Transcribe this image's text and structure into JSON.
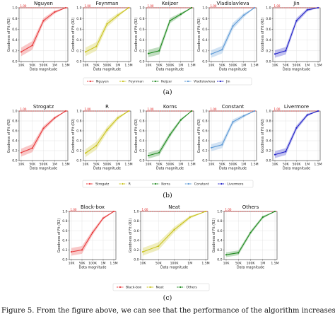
{
  "colors": {
    "red": "#e8393b",
    "yellow": "#c9c21a",
    "green": "#1f8a1f",
    "lightblue": "#5d9ad6",
    "blue": "#2020c8",
    "reference": "#e02020"
  },
  "reference_label": "1.00",
  "caption_fragment": "Figure 5. From the figure above, we can see that the performance of the algorithm increases with",
  "chart_data": [
    {
      "type": "line",
      "title": "Nguyen",
      "color_key": "red",
      "x": [
        "10K",
        "50K",
        "500K",
        "1M",
        "1.5M"
      ],
      "values": [
        0.18,
        0.3,
        0.76,
        0.92,
        1.0
      ],
      "band": [
        0.08,
        0.08,
        0.05,
        0.03,
        0.0
      ],
      "xlabel": "Data magnitude",
      "ylabel": "Goodness of Fit (R2)",
      "ylim": [
        0.0,
        1.0
      ],
      "grid": true
    },
    {
      "type": "line",
      "title": "Feynman",
      "color_key": "yellow",
      "x": [
        "10K",
        "50K",
        "500K",
        "1M",
        "1.5M"
      ],
      "values": [
        0.18,
        0.28,
        0.7,
        0.86,
        1.0
      ],
      "band": [
        0.08,
        0.08,
        0.06,
        0.04,
        0.0
      ],
      "xlabel": "Data magnitude",
      "ylabel": "Goodness of Fit (R2)",
      "ylim": [
        0.0,
        1.0
      ],
      "grid": true
    },
    {
      "type": "line",
      "title": "Keijzer",
      "color_key": "green",
      "x": [
        "10K",
        "50K",
        "500K",
        "1M",
        "1.5M"
      ],
      "values": [
        0.15,
        0.2,
        0.76,
        0.88,
        1.0
      ],
      "band": [
        0.07,
        0.07,
        0.05,
        0.03,
        0.0
      ],
      "xlabel": "Data magnitude",
      "ylabel": "Goodness of Fit (R2)",
      "ylim": [
        0.0,
        1.0
      ],
      "grid": true
    },
    {
      "type": "line",
      "title": "Vladislavleva",
      "color_key": "lightblue",
      "x": [
        "10K",
        "50K",
        "500K",
        "1M",
        "1.5M"
      ],
      "values": [
        0.14,
        0.22,
        0.66,
        0.86,
        1.0
      ],
      "band": [
        0.07,
        0.07,
        0.06,
        0.04,
        0.0
      ],
      "xlabel": "Data magnitude",
      "ylabel": "Goodness of Fit (R2)",
      "ylim": [
        0.0,
        1.0
      ],
      "grid": true
    },
    {
      "type": "line",
      "title": "Jin",
      "color_key": "blue",
      "x": [
        "10K",
        "50K",
        "500K",
        "1M",
        "1.5M"
      ],
      "values": [
        0.14,
        0.2,
        0.76,
        0.96,
        1.0
      ],
      "band": [
        0.07,
        0.07,
        0.05,
        0.03,
        0.0
      ],
      "xlabel": "Data magnitude",
      "ylabel": "Goodness of Fit (R2)",
      "ylim": [
        0.0,
        1.0
      ],
      "grid": true
    },
    {
      "type": "line",
      "title": "Strogatz",
      "color_key": "red",
      "x": [
        "10K",
        "50K",
        "500K",
        "1M",
        "1.5M"
      ],
      "values": [
        0.16,
        0.25,
        0.65,
        0.86,
        1.0
      ],
      "band": [
        0.08,
        0.08,
        0.05,
        0.03,
        0.0
      ],
      "xlabel": "Data magnitude",
      "ylabel": "Goodness of Fit (R2)",
      "ylim": [
        0.0,
        1.0
      ],
      "grid": true
    },
    {
      "type": "line",
      "title": "R",
      "color_key": "yellow",
      "x": [
        "10K",
        "50K",
        "500K",
        "1M",
        "1.5M"
      ],
      "values": [
        0.15,
        0.3,
        0.62,
        0.86,
        1.0
      ],
      "band": [
        0.08,
        0.08,
        0.06,
        0.04,
        0.0
      ],
      "xlabel": "Data magnitude",
      "ylabel": "Goodness of Fit (R2)",
      "ylim": [
        0.0,
        1.0
      ],
      "grid": true
    },
    {
      "type": "line",
      "title": "Korns",
      "color_key": "green",
      "x": [
        "10K",
        "50K",
        "500K",
        "1M",
        "1.5M"
      ],
      "values": [
        0.1,
        0.16,
        0.52,
        0.82,
        1.0
      ],
      "band": [
        0.06,
        0.06,
        0.05,
        0.03,
        0.0
      ],
      "xlabel": "Data magnitude",
      "ylabel": "Goodness of Fit (R2)",
      "ylim": [
        0.0,
        1.0
      ],
      "grid": true
    },
    {
      "type": "line",
      "title": "Constant",
      "color_key": "lightblue",
      "x": [
        "10K",
        "50K",
        "500K",
        "1M",
        "1.5M"
      ],
      "values": [
        0.26,
        0.32,
        0.78,
        0.9,
        1.0
      ],
      "band": [
        0.07,
        0.07,
        0.05,
        0.03,
        0.0
      ],
      "xlabel": "Data magnitude",
      "ylabel": "Goodness of Fit (R2)",
      "ylim": [
        0.0,
        1.0
      ],
      "grid": true
    },
    {
      "type": "line",
      "title": "Livermore",
      "color_key": "blue",
      "x": [
        "10K",
        "50K",
        "500K",
        "1M",
        "1.5M"
      ],
      "values": [
        0.12,
        0.18,
        0.66,
        0.92,
        1.0
      ],
      "band": [
        0.07,
        0.07,
        0.05,
        0.03,
        0.0
      ],
      "xlabel": "Data magnitude",
      "ylabel": "Goodness of Fit (R2)",
      "ylim": [
        0.0,
        1.0
      ],
      "grid": true
    },
    {
      "type": "line",
      "title": "Black-box",
      "color_key": "red",
      "x": [
        "10K",
        "50K",
        "100K",
        "1M",
        "1.5M"
      ],
      "values": [
        0.16,
        0.2,
        0.56,
        0.86,
        1.0
      ],
      "band": [
        0.08,
        0.08,
        0.05,
        0.03,
        0.0
      ],
      "xlabel": "Data magnitude",
      "ylabel": "Goodness of Fit (R2)",
      "ylim": [
        0.0,
        1.0
      ],
      "grid": true
    },
    {
      "type": "line",
      "title": "Neat",
      "color_key": "yellow",
      "x": [
        "10K",
        "50K",
        "100K",
        "1M",
        "1.5M"
      ],
      "values": [
        0.16,
        0.28,
        0.62,
        0.88,
        1.0
      ],
      "band": [
        0.08,
        0.08,
        0.06,
        0.03,
        0.0
      ],
      "xlabel": "Data magnitude",
      "ylabel": "Goodness of Fit (R2)",
      "ylim": [
        0.0,
        1.0
      ],
      "grid": true
    },
    {
      "type": "line",
      "title": "Others",
      "color_key": "green",
      "x": [
        "10K",
        "50K",
        "100K",
        "1M",
        "1.5M"
      ],
      "values": [
        0.1,
        0.14,
        0.56,
        0.88,
        1.0
      ],
      "band": [
        0.05,
        0.05,
        0.04,
        0.03,
        0.0
      ],
      "xlabel": "Data magnitude",
      "ylabel": "Goodness of Fit (R2)",
      "ylim": [
        0.0,
        1.0
      ],
      "grid": true
    }
  ],
  "legends": [
    {
      "panel_label": "(a)",
      "entries": [
        {
          "name": "Nguyen",
          "color_key": "red"
        },
        {
          "name": "Feynman",
          "color_key": "yellow"
        },
        {
          "name": "Keijzer",
          "color_key": "green"
        },
        {
          "name": "Vladislavleva",
          "color_key": "lightblue"
        },
        {
          "name": "Jin",
          "color_key": "blue"
        }
      ]
    },
    {
      "panel_label": "(b)",
      "entries": [
        {
          "name": "Strogatz",
          "color_key": "red"
        },
        {
          "name": "R",
          "color_key": "yellow"
        },
        {
          "name": "Korns",
          "color_key": "green"
        },
        {
          "name": "Constant",
          "color_key": "lightblue"
        },
        {
          "name": "Livermore",
          "color_key": "blue"
        }
      ]
    },
    {
      "panel_label": "(c)",
      "entries": [
        {
          "name": "Black-box",
          "color_key": "red"
        },
        {
          "name": "Neat",
          "color_key": "yellow"
        },
        {
          "name": "Others",
          "color_key": "green"
        }
      ]
    }
  ]
}
